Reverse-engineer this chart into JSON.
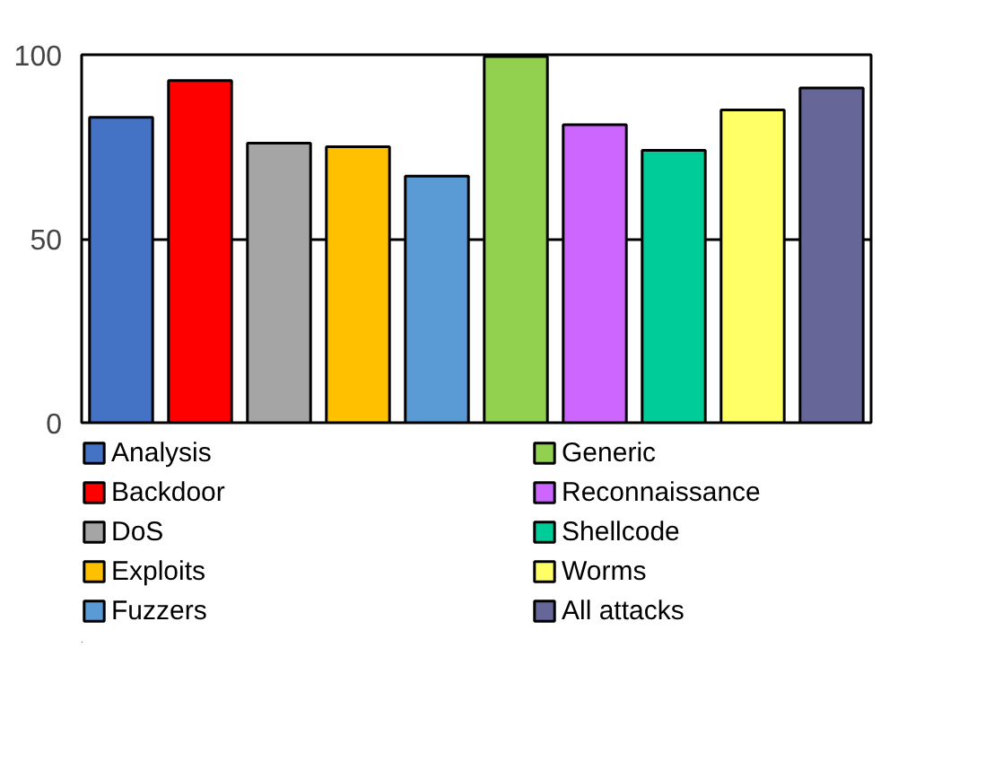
{
  "chart_data": {
    "type": "bar",
    "categories": [
      null,
      null,
      null,
      null,
      null,
      null,
      null,
      null,
      null,
      null
    ],
    "series": [
      {
        "name": "Analysis",
        "color": "#4472c4",
        "values": [
          83,
          null,
          null,
          null,
          null,
          null,
          null,
          null,
          null,
          null
        ]
      },
      {
        "name": "Backdoor",
        "color": "#ff0000",
        "values": [
          null,
          93,
          null,
          null,
          null,
          null,
          null,
          null,
          null,
          null
        ]
      },
      {
        "name": "DoS",
        "color": "#a5a5a5",
        "values": [
          null,
          null,
          76,
          null,
          null,
          null,
          null,
          null,
          null,
          null
        ]
      },
      {
        "name": "Exploits",
        "color": "#ffc000",
        "values": [
          null,
          null,
          null,
          75,
          null,
          null,
          null,
          null,
          null,
          null
        ]
      },
      {
        "name": "Fuzzers",
        "color": "#5b9bd5",
        "values": [
          null,
          null,
          null,
          null,
          67,
          null,
          null,
          null,
          null,
          null
        ]
      },
      {
        "name": "Generic",
        "color": "#92d050",
        "values": [
          null,
          null,
          null,
          null,
          null,
          99.5,
          null,
          null,
          null,
          null
        ]
      },
      {
        "name": "Reconnaissance",
        "color": "#cc66ff",
        "values": [
          null,
          null,
          null,
          null,
          null,
          null,
          81,
          null,
          null,
          null
        ]
      },
      {
        "name": "Shellcode",
        "color": "#00cc99",
        "values": [
          null,
          null,
          null,
          null,
          null,
          null,
          null,
          74,
          null,
          null
        ]
      },
      {
        "name": "Worms",
        "color": "#ffff66",
        "values": [
          null,
          null,
          null,
          null,
          null,
          null,
          null,
          null,
          85,
          null
        ]
      },
      {
        "name": "All attacks",
        "color": "#666699",
        "values": [
          null,
          null,
          null,
          null,
          null,
          null,
          null,
          null,
          null,
          91
        ]
      }
    ],
    "ylim": [
      0,
      100
    ],
    "yticks": [
      0,
      50,
      100
    ],
    "grid": "y",
    "legend": "bottom",
    "tick_labels": "y"
  }
}
